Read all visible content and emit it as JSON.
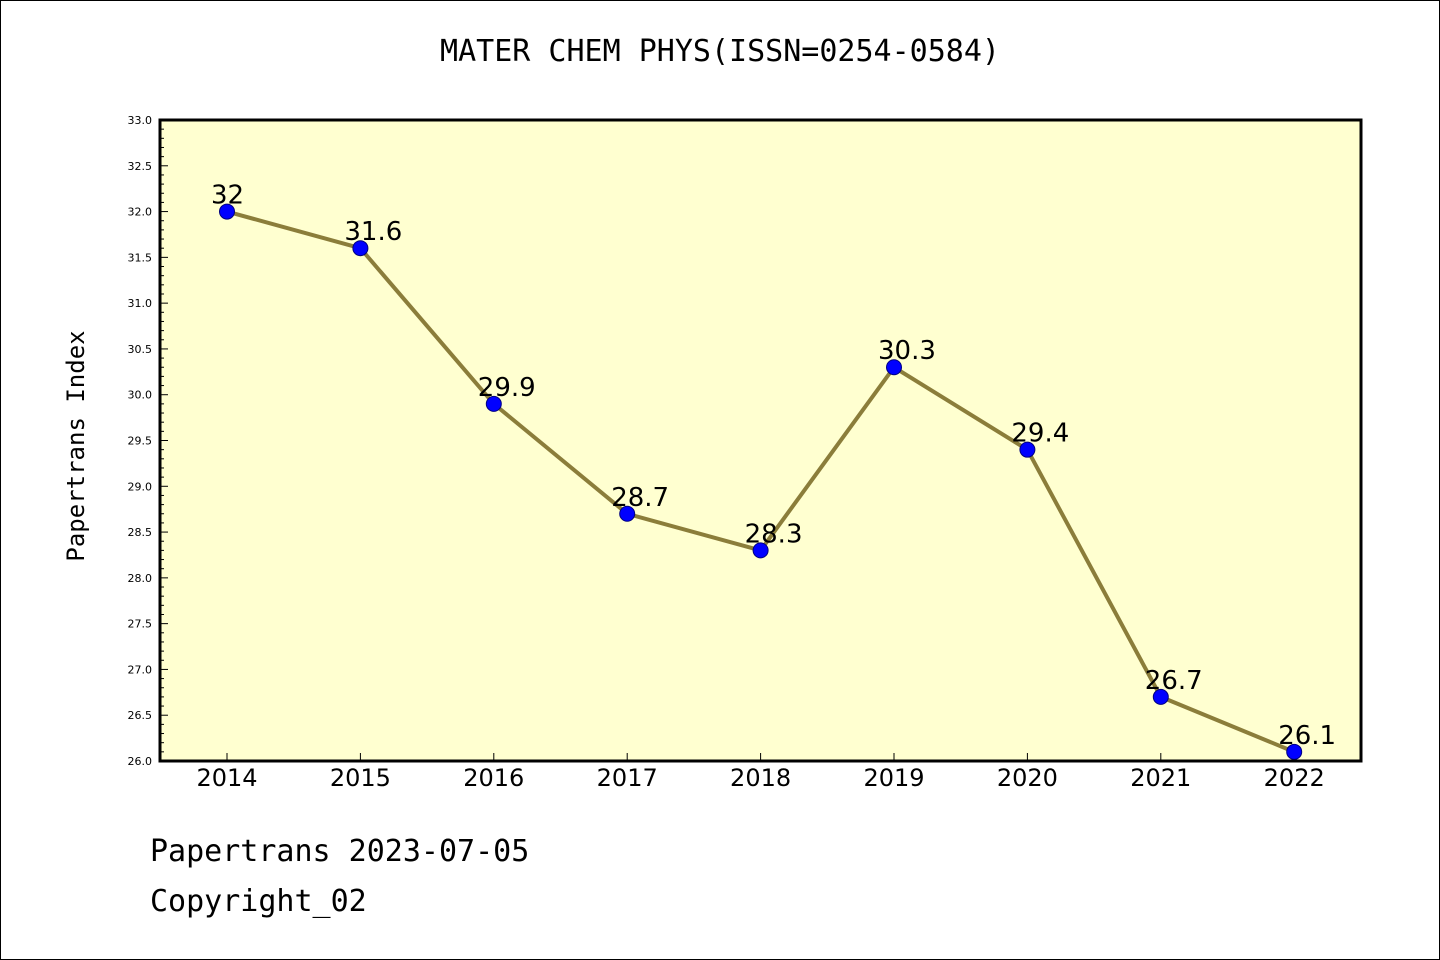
{
  "chart_data": {
    "type": "line",
    "title": "MATER CHEM PHYS(ISSN=0254-0584)",
    "xlabel": "",
    "ylabel": "Papertrans Index",
    "categories": [
      "2014",
      "2015",
      "2016",
      "2017",
      "2018",
      "2019",
      "2020",
      "2021",
      "2022"
    ],
    "values": [
      32,
      31.6,
      29.9,
      28.7,
      28.3,
      30.3,
      29.4,
      26.7,
      26.1
    ],
    "data_labels": [
      "32",
      "31.6",
      "29.9",
      "28.7",
      "28.3",
      "30.3",
      "29.4",
      "26.7",
      "26.1"
    ],
    "ylim": [
      26.0,
      33.0
    ],
    "yticks": [
      "26.0",
      "26.5",
      "27.0",
      "27.5",
      "28.0",
      "28.5",
      "29.0",
      "29.5",
      "30.0",
      "30.5",
      "31.0",
      "31.5",
      "32.0",
      "32.5",
      "33.0"
    ],
    "grid": false,
    "legend": "none",
    "colors": {
      "plot_background": "#ffffd0",
      "line": "#8b7d3a",
      "marker_fill": "#0000ff",
      "marker_edge": "#000080",
      "axes": "#000000"
    }
  },
  "footer": {
    "line1": "Papertrans 2023-07-05",
    "line2": "Copyright_02"
  }
}
